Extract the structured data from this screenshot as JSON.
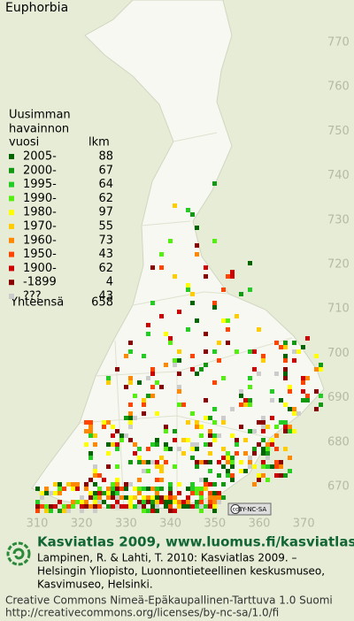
{
  "title": "Euphorbia",
  "legend": {
    "heading": [
      "Uusimman",
      "havainnon"
    ],
    "year_header": "vuosi",
    "count_header": "lkm",
    "entries": [
      {
        "label": "2005-",
        "count": 88,
        "color": "#006400"
      },
      {
        "label": "2000-",
        "count": 67,
        "color": "#119911"
      },
      {
        "label": "1995-",
        "count": 64,
        "color": "#22cc22"
      },
      {
        "label": "1990-",
        "count": 62,
        "color": "#55ee11"
      },
      {
        "label": "1980-",
        "count": 97,
        "color": "#ffff00"
      },
      {
        "label": "1970-",
        "count": 55,
        "color": "#ffcc00"
      },
      {
        "label": "1960-",
        "count": 73,
        "color": "#ff8800"
      },
      {
        "label": "1950-",
        "count": 43,
        "color": "#ff4400"
      },
      {
        "label": "1900-",
        "count": 62,
        "color": "#cc0000"
      },
      {
        "label": "-1899",
        "count": 4,
        "color": "#880000"
      },
      {
        "label": "???",
        "count": 43,
        "color": "#cccccc"
      }
    ],
    "total_label": "Yhteensä",
    "total": 658
  },
  "grid": {
    "y_labels": [
      770,
      760,
      750,
      740,
      730,
      720,
      710,
      700,
      690,
      680,
      670
    ],
    "x_labels": [
      310,
      320,
      330,
      340,
      350,
      360,
      370
    ]
  },
  "license_badge": {
    "cc": "cc",
    "text": "BY-NC-SA"
  },
  "footer": {
    "title": "Kasviatlas 2009, www.luomus.fi/kasviatlas",
    "citation": [
      "Lampinen, R. & Lahti, T. 2010: Kasviatlas 2009. –",
      "Helsingin Yliopisto, Luonnontieteellinen keskusmuseo,",
      "Kasvimuseo, Helsinki."
    ],
    "license": [
      "Creative Commons Nimeä-Epäkaupallinen-Tarttuva 1.0 Suomi",
      "http://creativecommons.org/licenses/by-nc-sa/1.0/fi"
    ]
  }
}
